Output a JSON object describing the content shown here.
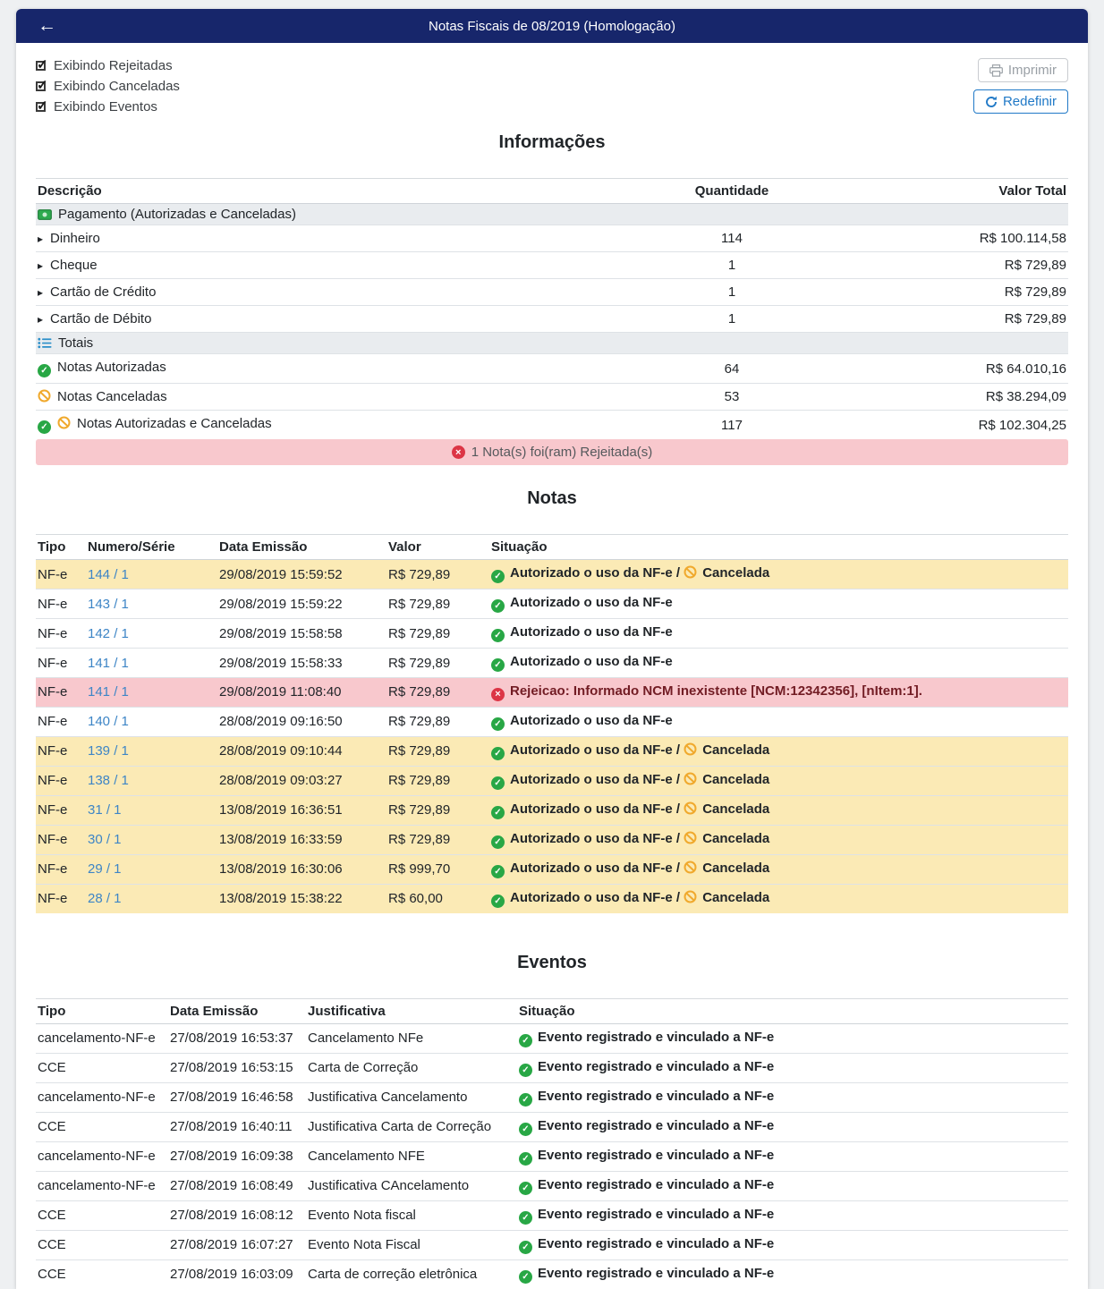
{
  "page": {
    "title_bar": "Notas Fiscais de 08/2019 (Homologação)",
    "back_icon": "←"
  },
  "filters": {
    "rejeitadas": {
      "label": "Exibindo Rejeitadas",
      "checked": true
    },
    "canceladas": {
      "label": "Exibindo Canceladas",
      "checked": true
    },
    "eventos": {
      "label": "Exibindo Eventos",
      "checked": true
    }
  },
  "toolbar": {
    "imprimir_label": "Imprimir",
    "redefinir_label": "Redefinir"
  },
  "colors": {
    "header_bg": "#17266b",
    "link": "#3d85c6",
    "success": "#28a745",
    "warning_icon": "#f0a92d",
    "danger": "#dc3545",
    "primary": "#2079c7",
    "warning_row": "#fbeab5",
    "danger_row": "#f8c8cd",
    "group_row": "#e9ecef"
  },
  "informacoes": {
    "title": "Informações",
    "columns": {
      "descricao": "Descrição",
      "quantidade": "Quantidade",
      "valor_total": "Valor Total"
    },
    "rows": [
      {
        "type": "group",
        "icons": [
          "money-bill-icon"
        ],
        "label": "Pagamento (Autorizadas e Canceladas)"
      },
      {
        "type": "item",
        "icons": [
          "caret-right-icon"
        ],
        "label": "Dinheiro",
        "quantidade": "114",
        "valor": "R$ 100.114,58"
      },
      {
        "type": "item",
        "icons": [
          "caret-right-icon"
        ],
        "label": "Cheque",
        "quantidade": "1",
        "valor": "R$ 729,89"
      },
      {
        "type": "item",
        "icons": [
          "caret-right-icon"
        ],
        "label": "Cartão de Crédito",
        "quantidade": "1",
        "valor": "R$ 729,89"
      },
      {
        "type": "item",
        "icons": [
          "caret-right-icon"
        ],
        "label": "Cartão de Débito",
        "quantidade": "1",
        "valor": "R$ 729,89"
      },
      {
        "type": "group",
        "icons": [
          "list-icon"
        ],
        "label": "Totais"
      },
      {
        "type": "item",
        "icons": [
          "check-circle-icon"
        ],
        "label": "Notas Autorizadas",
        "quantidade": "64",
        "valor": "R$ 64.010,16"
      },
      {
        "type": "item",
        "icons": [
          "ban-icon"
        ],
        "label": "Notas Canceladas",
        "quantidade": "53",
        "valor": "R$ 38.294,09"
      },
      {
        "type": "item",
        "icons": [
          "check-circle-icon",
          "ban-icon"
        ],
        "label": "Notas Autorizadas e Canceladas",
        "quantidade": "117",
        "valor": "R$ 102.304,25"
      }
    ]
  },
  "alert": {
    "icon": "x-circle-icon",
    "text": "1 Nota(s) foi(ram) Rejeitada(s)"
  },
  "notas": {
    "title": "Notas",
    "columns": {
      "tipo": "Tipo",
      "numero": "Numero/Série",
      "data": "Data Emissão",
      "valor": "Valor",
      "situacao": "Situação"
    },
    "status_labels": {
      "autorizado": "Autorizado o uso da NF-e",
      "separator": " / ",
      "cancelada": "Cancelada"
    },
    "rows": [
      {
        "tipo": "NF-e",
        "numero": "144 / 1",
        "data": "29/08/2019 15:59:52",
        "valor": "R$ 729,89",
        "situacao": "autorizado_cancelada",
        "row_style": "warning"
      },
      {
        "tipo": "NF-e",
        "numero": "143 / 1",
        "data": "29/08/2019 15:59:22",
        "valor": "R$ 729,89",
        "situacao": "autorizado",
        "row_style": "none"
      },
      {
        "tipo": "NF-e",
        "numero": "142 / 1",
        "data": "29/08/2019 15:58:58",
        "valor": "R$ 729,89",
        "situacao": "autorizado",
        "row_style": "none"
      },
      {
        "tipo": "NF-e",
        "numero": "141 / 1",
        "data": "29/08/2019 15:58:33",
        "valor": "R$ 729,89",
        "situacao": "autorizado",
        "row_style": "none"
      },
      {
        "tipo": "NF-e",
        "numero": "141 / 1",
        "data": "29/08/2019 11:08:40",
        "valor": "R$ 729,89",
        "situacao": "rejeitada",
        "rejeicao_text": "Rejeicao: Informado NCM inexistente [NCM:12342356], [nItem:1].",
        "row_style": "danger"
      },
      {
        "tipo": "NF-e",
        "numero": "140 / 1",
        "data": "28/08/2019 09:16:50",
        "valor": "R$ 729,89",
        "situacao": "autorizado",
        "row_style": "none"
      },
      {
        "tipo": "NF-e",
        "numero": "139 / 1",
        "data": "28/08/2019 09:10:44",
        "valor": "R$ 729,89",
        "situacao": "autorizado_cancelada",
        "row_style": "warning"
      },
      {
        "tipo": "NF-e",
        "numero": "138 / 1",
        "data": "28/08/2019 09:03:27",
        "valor": "R$ 729,89",
        "situacao": "autorizado_cancelada",
        "row_style": "warning"
      },
      {
        "tipo": "NF-e",
        "numero": "31 / 1",
        "data": "13/08/2019 16:36:51",
        "valor": "R$ 729,89",
        "situacao": "autorizado_cancelada",
        "row_style": "warning"
      },
      {
        "tipo": "NF-e",
        "numero": "30 / 1",
        "data": "13/08/2019 16:33:59",
        "valor": "R$ 729,89",
        "situacao": "autorizado_cancelada",
        "row_style": "warning"
      },
      {
        "tipo": "NF-e",
        "numero": "29 / 1",
        "data": "13/08/2019 16:30:06",
        "valor": "R$ 999,70",
        "situacao": "autorizado_cancelada",
        "row_style": "warning"
      },
      {
        "tipo": "NF-e",
        "numero": "28 / 1",
        "data": "13/08/2019 15:38:22",
        "valor": "R$ 60,00",
        "situacao": "autorizado_cancelada",
        "row_style": "warning"
      }
    ]
  },
  "eventos": {
    "title": "Eventos",
    "columns": {
      "tipo": "Tipo",
      "data": "Data Emissão",
      "justificativa": "Justificativa",
      "situacao": "Situação"
    },
    "status_label": "Evento registrado e vinculado a NF-e",
    "rows": [
      {
        "tipo": "cancelamento-NF-e",
        "data": "27/08/2019 16:53:37",
        "justificativa": "Cancelamento NFe"
      },
      {
        "tipo": "CCE",
        "data": "27/08/2019 16:53:15",
        "justificativa": "Carta de Correção"
      },
      {
        "tipo": "cancelamento-NF-e",
        "data": "27/08/2019 16:46:58",
        "justificativa": "Justificativa Cancelamento"
      },
      {
        "tipo": "CCE",
        "data": "27/08/2019 16:40:11",
        "justificativa": "Justificativa Carta de Correção"
      },
      {
        "tipo": "cancelamento-NF-e",
        "data": "27/08/2019 16:09:38",
        "justificativa": "Cancelamento NFE"
      },
      {
        "tipo": "cancelamento-NF-e",
        "data": "27/08/2019 16:08:49",
        "justificativa": "Justificativa CAncelamento"
      },
      {
        "tipo": "CCE",
        "data": "27/08/2019 16:08:12",
        "justificativa": "Evento Nota fiscal"
      },
      {
        "tipo": "CCE",
        "data": "27/08/2019 16:07:27",
        "justificativa": "Evento Nota Fiscal"
      },
      {
        "tipo": "CCE",
        "data": "27/08/2019 16:03:09",
        "justificativa": "Carta de correção eletrônica"
      }
    ]
  }
}
